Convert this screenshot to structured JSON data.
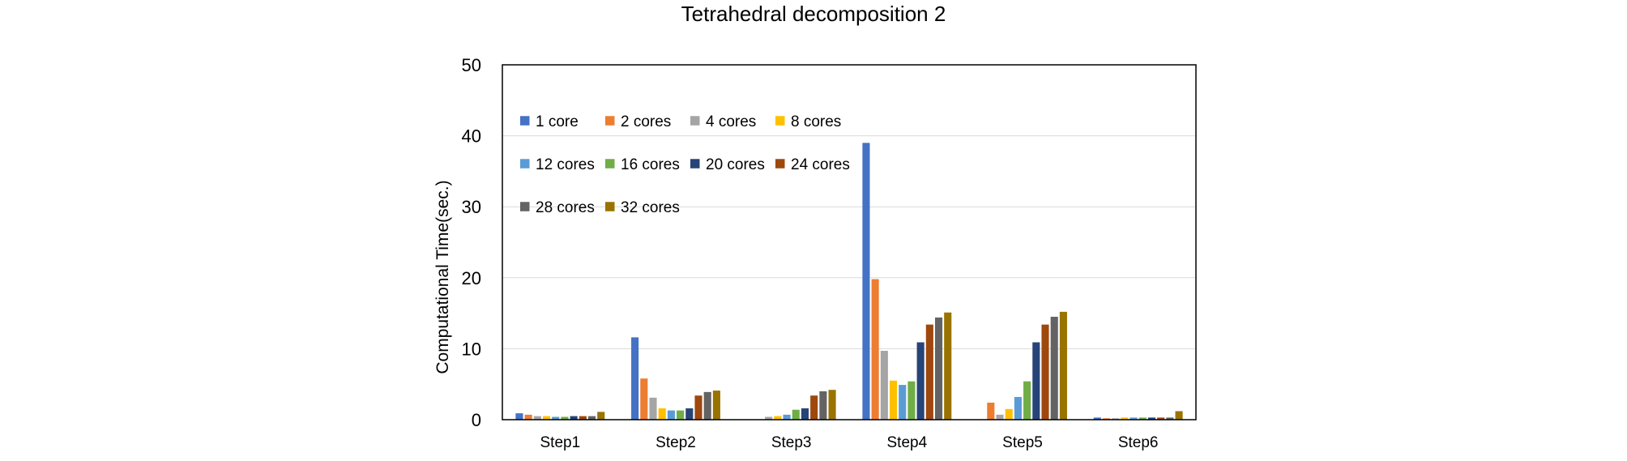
{
  "chart_data": {
    "type": "bar",
    "title": "Tetrahedral decomposition 2",
    "xlabel": "",
    "ylabel": "Computational Time(sec.)",
    "ylim": [
      0,
      50
    ],
    "yticks": [
      0,
      10,
      20,
      30,
      40,
      50
    ],
    "grid": true,
    "legend_position": "top-left inside",
    "categories": [
      "Step1",
      "Step2",
      "Step3",
      "Step4",
      "Step5",
      "Step6"
    ],
    "series": [
      {
        "name": "1 core",
        "color": "#4472C4",
        "values": [
          0.9,
          11.6,
          0.0,
          39.0,
          0.0,
          0.3
        ]
      },
      {
        "name": "2 cores",
        "color": "#ED7D31",
        "values": [
          0.7,
          5.8,
          0.0,
          19.8,
          2.4,
          0.2
        ]
      },
      {
        "name": "4 cores",
        "color": "#A5A5A5",
        "values": [
          0.5,
          3.1,
          0.4,
          9.7,
          0.7,
          0.2
        ]
      },
      {
        "name": "8 cores",
        "color": "#FFC000",
        "values": [
          0.5,
          1.6,
          0.5,
          5.5,
          1.5,
          0.3
        ]
      },
      {
        "name": "12 cores",
        "color": "#5B9BD5",
        "values": [
          0.4,
          1.3,
          0.7,
          4.9,
          3.2,
          0.3
        ]
      },
      {
        "name": "16 cores",
        "color": "#70AD47",
        "values": [
          0.4,
          1.3,
          1.4,
          5.4,
          5.4,
          0.3
        ]
      },
      {
        "name": "20 cores",
        "color": "#264478",
        "values": [
          0.5,
          1.6,
          1.6,
          10.9,
          10.9,
          0.3
        ]
      },
      {
        "name": "24 cores",
        "color": "#9E480E",
        "values": [
          0.5,
          3.4,
          3.4,
          13.4,
          13.4,
          0.3
        ]
      },
      {
        "name": "28 cores",
        "color": "#636363",
        "values": [
          0.5,
          3.9,
          4.0,
          14.4,
          14.5,
          0.3
        ]
      },
      {
        "name": "32 cores",
        "color": "#997300",
        "values": [
          1.1,
          4.1,
          4.2,
          15.1,
          15.2,
          1.2
        ]
      }
    ]
  }
}
